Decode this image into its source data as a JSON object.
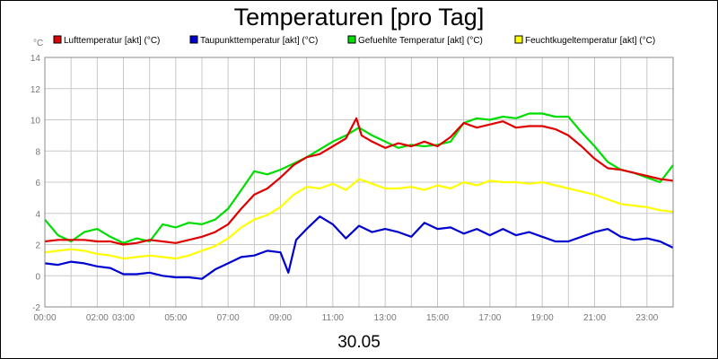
{
  "chart_data": {
    "type": "line",
    "title": "Temperaturen [pro Tag]",
    "xlabel": "30.05",
    "ylabel": "°C",
    "x_unit": "hour",
    "xlim": [
      0,
      24
    ],
    "ylim": [
      -2,
      14
    ],
    "y_ticks": [
      -2,
      0,
      2,
      4,
      6,
      8,
      10,
      12,
      14
    ],
    "x_ticks": [
      {
        "x": 0,
        "label": "00:00"
      },
      {
        "x": 2,
        "label": "02:00"
      },
      {
        "x": 3,
        "label": "03:00"
      },
      {
        "x": 5,
        "label": "05:00"
      },
      {
        "x": 7,
        "label": "07:00"
      },
      {
        "x": 9,
        "label": "09:00"
      },
      {
        "x": 11,
        "label": "11:00"
      },
      {
        "x": 13,
        "label": "13:00"
      },
      {
        "x": 15,
        "label": "15:00"
      },
      {
        "x": 17,
        "label": "17:00"
      },
      {
        "x": 19,
        "label": "19:00"
      },
      {
        "x": 21,
        "label": "21:00"
      },
      {
        "x": 23,
        "label": "23:00"
      }
    ],
    "grid": true,
    "legend_position": "top",
    "series": [
      {
        "name": "Lufttemperatur [akt] (°C)",
        "color": "#e00000",
        "x": [
          0,
          0.5,
          1,
          1.5,
          2,
          2.5,
          3,
          3.5,
          4,
          4.5,
          5,
          5.5,
          6,
          6.5,
          7,
          7.5,
          8,
          8.5,
          9,
          9.5,
          10,
          10.5,
          11,
          11.5,
          11.9,
          12.1,
          12.5,
          13,
          13.5,
          14,
          14.5,
          15,
          15.5,
          16,
          16.5,
          17,
          17.5,
          18,
          18.5,
          19,
          19.5,
          20,
          20.5,
          21,
          21.5,
          22,
          22.5,
          23,
          23.5,
          24
        ],
        "y": [
          2.2,
          2.3,
          2.3,
          2.3,
          2.2,
          2.2,
          2.0,
          2.1,
          2.3,
          2.2,
          2.1,
          2.3,
          2.5,
          2.8,
          3.3,
          4.3,
          5.2,
          5.6,
          6.3,
          7.1,
          7.6,
          7.8,
          8.3,
          8.8,
          10.1,
          9.0,
          8.6,
          8.2,
          8.5,
          8.3,
          8.6,
          8.3,
          8.9,
          9.8,
          9.5,
          9.7,
          9.9,
          9.5,
          9.6,
          9.6,
          9.4,
          9.0,
          8.3,
          7.5,
          6.9,
          6.8,
          6.6,
          6.4,
          6.2,
          6.1
        ]
      },
      {
        "name": "Taupunkttemperatur [akt] (°C)",
        "color": "#0000d0",
        "x": [
          0,
          0.5,
          1,
          1.5,
          2,
          2.5,
          3,
          3.5,
          4,
          4.5,
          5,
          5.5,
          6,
          6.5,
          7,
          7.5,
          8,
          8.5,
          9,
          9.3,
          9.6,
          10,
          10.5,
          11,
          11.5,
          12,
          12.5,
          13,
          13.5,
          14,
          14.5,
          15,
          15.5,
          16,
          16.5,
          17,
          17.5,
          18,
          18.5,
          19,
          19.5,
          20,
          20.5,
          21,
          21.5,
          22,
          22.5,
          23,
          23.5,
          24
        ],
        "y": [
          0.8,
          0.7,
          0.9,
          0.8,
          0.6,
          0.5,
          0.1,
          0.1,
          0.2,
          0.0,
          -0.1,
          -0.1,
          -0.2,
          0.4,
          0.8,
          1.2,
          1.3,
          1.6,
          1.5,
          0.2,
          2.3,
          3.0,
          3.8,
          3.3,
          2.4,
          3.2,
          2.8,
          3.0,
          2.8,
          2.5,
          3.4,
          3.0,
          3.1,
          2.7,
          3.0,
          2.6,
          3.0,
          2.6,
          2.8,
          2.5,
          2.2,
          2.2,
          2.5,
          2.8,
          3.0,
          2.5,
          2.3,
          2.4,
          2.2,
          1.8
        ]
      },
      {
        "name": "Gefuehlte Temperatur [akt] (°C)",
        "color": "#00dd00",
        "x": [
          0,
          0.5,
          1,
          1.5,
          2,
          2.5,
          3,
          3.5,
          4,
          4.5,
          5,
          5.5,
          6,
          6.5,
          7,
          7.5,
          8,
          8.5,
          9,
          9.5,
          10,
          10.5,
          11,
          11.5,
          12,
          12.5,
          13,
          13.5,
          14,
          14.5,
          15,
          15.5,
          16,
          16.5,
          17,
          17.5,
          18,
          18.5,
          19,
          19.5,
          20,
          20.5,
          21,
          21.5,
          22,
          22.5,
          23,
          23.5,
          24
        ],
        "y": [
          3.6,
          2.6,
          2.2,
          2.8,
          3.0,
          2.5,
          2.1,
          2.4,
          2.2,
          3.3,
          3.1,
          3.4,
          3.3,
          3.6,
          4.3,
          5.5,
          6.7,
          6.5,
          6.8,
          7.2,
          7.6,
          8.1,
          8.6,
          9.0,
          9.5,
          9.0,
          8.6,
          8.2,
          8.4,
          8.3,
          8.4,
          8.6,
          9.8,
          10.1,
          10.0,
          10.2,
          10.1,
          10.4,
          10.4,
          10.2,
          10.2,
          9.2,
          8.3,
          7.3,
          6.8,
          6.6,
          6.3,
          6.0,
          7.1
        ]
      },
      {
        "name": "Feuchtkugeltemperatur [akt] (°C)",
        "color": "#ffff00",
        "x": [
          0,
          0.5,
          1,
          1.5,
          2,
          2.5,
          3,
          3.5,
          4,
          4.5,
          5,
          5.5,
          6,
          6.5,
          7,
          7.5,
          8,
          8.5,
          9,
          9.5,
          10,
          10.5,
          11,
          11.5,
          12,
          12.5,
          13,
          13.5,
          14,
          14.5,
          15,
          15.5,
          16,
          16.5,
          17,
          17.5,
          18,
          18.5,
          19,
          19.5,
          20,
          20.5,
          21,
          21.5,
          22,
          22.5,
          23,
          23.5,
          24
        ],
        "y": [
          1.5,
          1.6,
          1.7,
          1.6,
          1.4,
          1.3,
          1.1,
          1.2,
          1.3,
          1.2,
          1.1,
          1.3,
          1.6,
          1.9,
          2.4,
          3.1,
          3.6,
          3.9,
          4.4,
          5.2,
          5.7,
          5.6,
          5.9,
          5.5,
          6.2,
          5.9,
          5.6,
          5.6,
          5.7,
          5.5,
          5.8,
          5.6,
          6.0,
          5.8,
          6.1,
          6.0,
          6.0,
          5.9,
          6.0,
          5.8,
          5.6,
          5.4,
          5.2,
          4.9,
          4.6,
          4.5,
          4.4,
          4.2,
          4.1
        ]
      }
    ]
  }
}
